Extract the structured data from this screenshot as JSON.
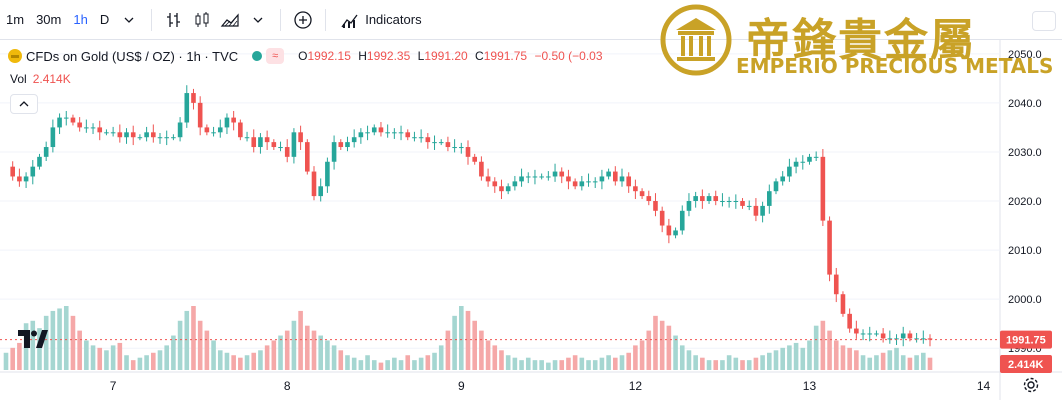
{
  "toolbar": {
    "intervals": [
      "1m",
      "30m",
      "1h",
      "D"
    ],
    "active_interval": "1h",
    "indicators_label": "Indicators"
  },
  "legend": {
    "symbol": "CFDs on Gold (US$ / OZ) · 1h · TVC",
    "ohlc": {
      "o_label": "O",
      "o": "1992.15",
      "h_label": "H",
      "h": "1992.35",
      "l_label": "L",
      "l": "1991.20",
      "c_label": "C",
      "c": "1991.75",
      "change": "−0.50 (−0.03"
    },
    "vol_label": "Vol",
    "vol_value": "2.414K"
  },
  "watermark": {
    "chinese": "帝鋒貴金屬",
    "latin": "EMPERIO PRECIOUS METALS"
  },
  "colors": {
    "up": "#26a69a",
    "down": "#ef5350",
    "vol_up": "#a5d6d1",
    "vol_down": "#f5a8a8",
    "gold": "#c9a227"
  },
  "chart_data": {
    "type": "candlestick",
    "price_axis": {
      "ticks": [
        1990,
        2000,
        2010,
        2020,
        2030,
        2040,
        2050
      ],
      "range": [
        1988,
        2052
      ]
    },
    "x_labels": [
      "7",
      "8",
      "9",
      "12",
      "13",
      "14"
    ],
    "last_price_label": "1991.75",
    "last_volume_label": "2.414K",
    "price_path": [
      2027,
      2025,
      2024,
      2025,
      2027,
      2029,
      2031,
      2035,
      2037,
      2037,
      2036,
      2035,
      2035,
      2035,
      2034,
      2034,
      2034,
      2033,
      2034,
      2033,
      2033,
      2034,
      2033,
      2033,
      2033,
      2033,
      2036,
      2042,
      2040,
      2035,
      2034,
      2034,
      2035,
      2037,
      2036,
      2033,
      2033,
      2031,
      2033,
      2032,
      2031,
      2031,
      2029,
      2034,
      2032,
      2026,
      2021,
      2023,
      2028,
      2032,
      2031,
      2032,
      2033,
      2034,
      2034,
      2035,
      2034,
      2034,
      2034,
      2034,
      2033,
      2033,
      2033,
      2032,
      2032,
      2032,
      2031,
      2031,
      2031,
      2029,
      2028,
      2025,
      2024,
      2023,
      2022,
      2023,
      2024,
      2025,
      2025,
      2025,
      2025,
      2025,
      2026,
      2025,
      2024,
      2023,
      2024,
      2024,
      2024,
      2025,
      2026,
      2024,
      2025,
      2023,
      2022,
      2021,
      2020,
      2018,
      2015,
      2013,
      2014,
      2018,
      2020,
      2021,
      2020,
      2021,
      2020,
      2020,
      2020,
      2020,
      2019,
      2019,
      2017,
      2019,
      2022,
      2024,
      2025,
      2027,
      2028,
      2028,
      2029,
      2029,
      2016,
      2005,
      2001,
      1997,
      1994,
      1993,
      1993,
      1993,
      1993,
      1992,
      1992,
      1992,
      1993,
      1992,
      1992,
      1992,
      1991.75
    ],
    "volume_path": [
      0.35,
      0.45,
      0.55,
      0.95,
      1.0,
      0.85,
      1.1,
      1.2,
      1.25,
      1.3,
      1.1,
      0.8,
      0.6,
      0.5,
      0.45,
      0.4,
      0.5,
      0.55,
      0.3,
      0.2,
      0.25,
      0.3,
      0.35,
      0.4,
      0.5,
      0.7,
      1.0,
      1.2,
      1.3,
      1.0,
      0.8,
      0.6,
      0.4,
      0.35,
      0.3,
      0.25,
      0.3,
      0.35,
      0.4,
      0.5,
      0.6,
      0.7,
      0.8,
      1.0,
      1.2,
      0.9,
      0.8,
      0.7,
      0.6,
      0.5,
      0.4,
      0.3,
      0.25,
      0.2,
      0.3,
      0.2,
      0.15,
      0.2,
      0.25,
      0.2,
      0.3,
      0.2,
      0.25,
      0.3,
      0.35,
      0.5,
      0.8,
      1.1,
      1.3,
      1.2,
      1.0,
      0.8,
      0.6,
      0.5,
      0.4,
      0.3,
      0.25,
      0.2,
      0.25,
      0.2,
      0.2,
      0.15,
      0.2,
      0.2,
      0.25,
      0.3,
      0.25,
      0.2,
      0.2,
      0.25,
      0.3,
      0.25,
      0.3,
      0.35,
      0.5,
      0.6,
      0.8,
      1.1,
      1.0,
      0.9,
      0.7,
      0.5,
      0.4,
      0.3,
      0.25,
      0.2,
      0.2,
      0.2,
      0.3,
      0.25,
      0.2,
      0.2,
      0.25,
      0.3,
      0.35,
      0.4,
      0.45,
      0.5,
      0.55,
      0.45,
      0.6,
      0.9,
      1.0,
      0.8,
      0.6,
      0.5,
      0.45,
      0.4,
      0.3,
      0.25,
      0.3,
      0.35,
      0.4,
      0.45,
      0.3,
      0.25,
      0.3,
      0.35,
      0.25
    ]
  }
}
